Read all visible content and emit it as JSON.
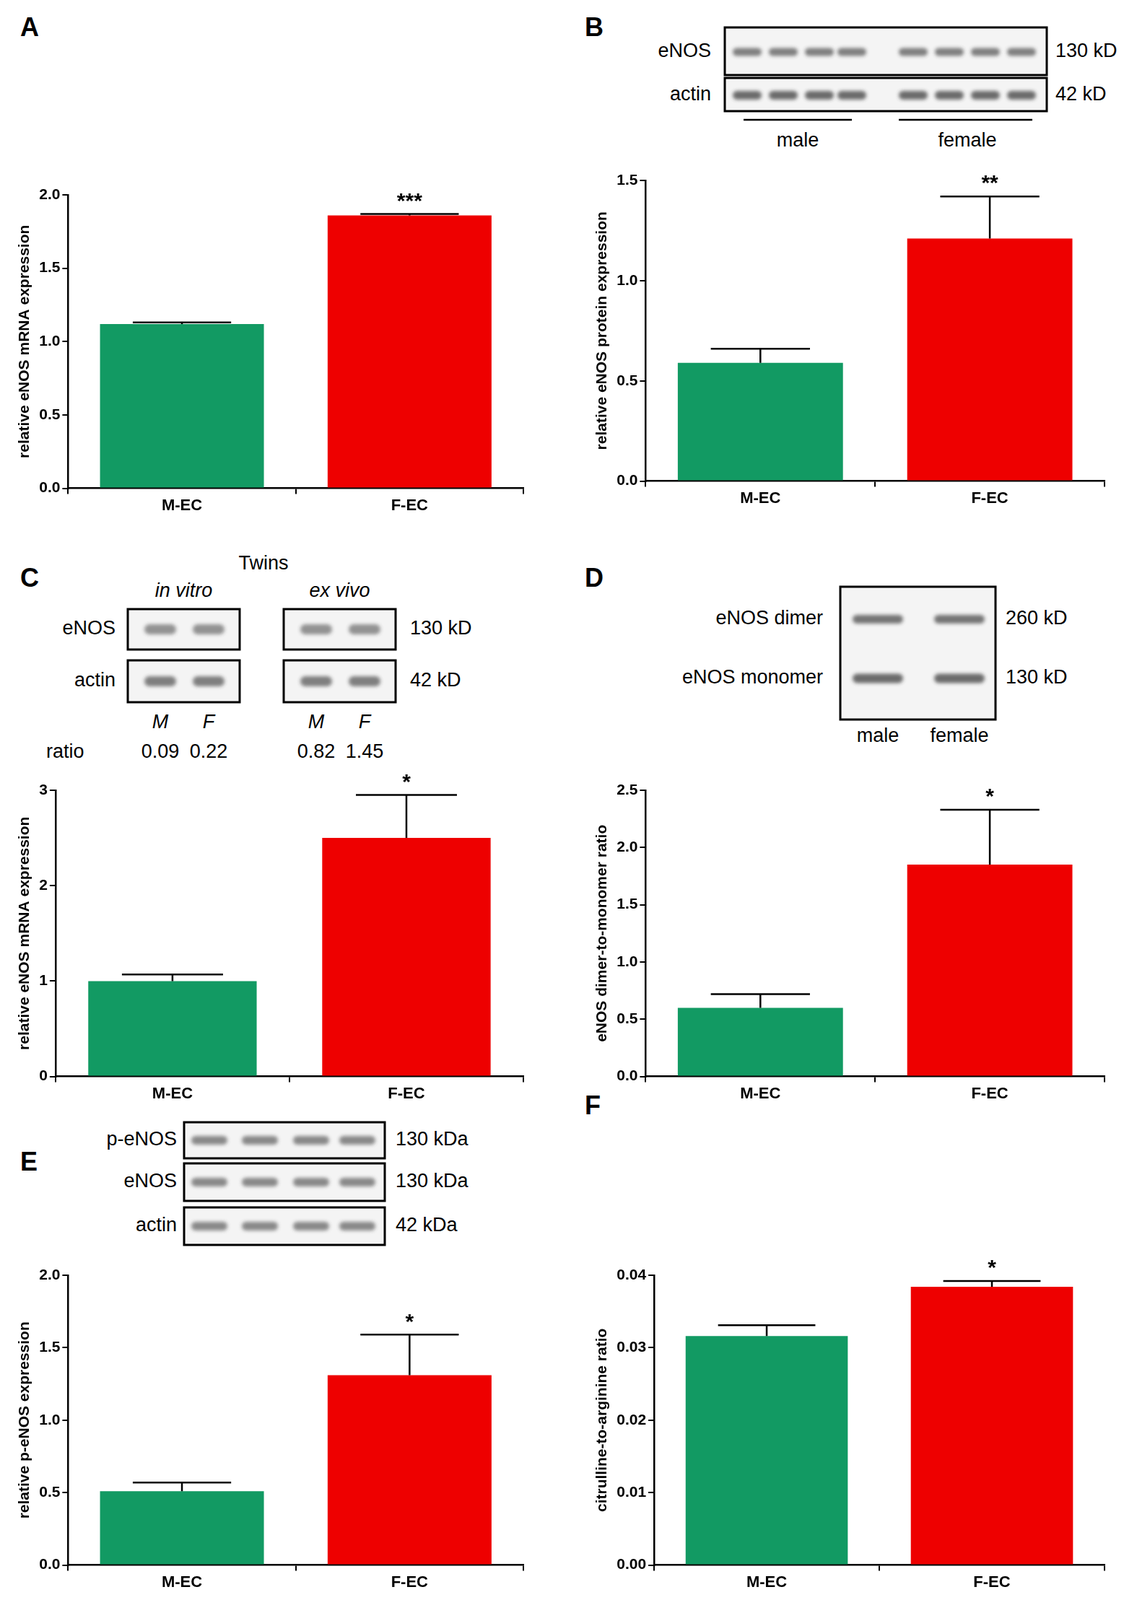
{
  "chart_data": [
    {
      "type": "bar",
      "ylabel": "relative eNOS mRNA expression",
      "categories": [
        "M-EC",
        "F-EC"
      ],
      "values": [
        1.12,
        1.86
      ],
      "error": [
        0.01,
        0.01
      ],
      "colors": [
        "#129a63",
        "#ee0000"
      ],
      "ylim": [
        0,
        2
      ],
      "yticks": [
        {
          "value": 0,
          "label": "0.0"
        },
        0.5,
        {
          "value": 1,
          "label": "1.0"
        },
        1.5,
        {
          "value": 2,
          "label": "2.0"
        }
      ],
      "grid": false,
      "annotations": [
        {
          "category": "F-EC",
          "text": "***"
        }
      ]
    },
    {
      "type": "bar",
      "ylabel": "relative eNOS protein expression",
      "categories": [
        "M-EC",
        "F-EC"
      ],
      "values": [
        0.59,
        1.21
      ],
      "error": [
        0.07,
        0.21
      ],
      "colors": [
        "#129a63",
        "#ee0000"
      ],
      "ylim": [
        0,
        1.5
      ],
      "yticks": [
        {
          "value": 0,
          "label": "0.0"
        },
        0.5,
        {
          "value": 1,
          "label": "1.0"
        },
        1.5
      ],
      "grid": false,
      "annotations": [
        {
          "category": "F-EC",
          "text": "**"
        }
      ]
    },
    {
      "type": "bar",
      "ylabel": "relative eNOS mRNA expression",
      "categories": [
        "M-EC",
        "F-EC"
      ],
      "values": [
        1.0,
        2.5
      ],
      "error": [
        0.07,
        0.45
      ],
      "colors": [
        "#129a63",
        "#ee0000"
      ],
      "ylim": [
        0,
        3
      ],
      "yticks": [
        0,
        1,
        2,
        3
      ],
      "grid": false,
      "annotations": [
        {
          "category": "F-EC",
          "text": "*"
        }
      ]
    },
    {
      "type": "bar",
      "ylabel": "eNOS dimer-to-monomer ratio",
      "categories": [
        "M-EC",
        "F-EC"
      ],
      "values": [
        0.6,
        1.85
      ],
      "error": [
        0.12,
        0.48
      ],
      "colors": [
        "#129a63",
        "#ee0000"
      ],
      "ylim": [
        0,
        2.5
      ],
      "yticks": [
        {
          "value": 0,
          "label": "0.0"
        },
        0.5,
        {
          "value": 1,
          "label": "1.0"
        },
        1.5,
        {
          "value": 2,
          "label": "2.0"
        },
        2.5
      ],
      "grid": false,
      "annotations": [
        {
          "category": "F-EC",
          "text": "*"
        }
      ]
    },
    {
      "type": "bar",
      "ylabel": "relative p-eNOS expression",
      "categories": [
        "M-EC",
        "F-EC"
      ],
      "values": [
        0.51,
        1.31
      ],
      "error": [
        0.06,
        0.28
      ],
      "colors": [
        "#129a63",
        "#ee0000"
      ],
      "ylim": [
        0,
        2
      ],
      "yticks": [
        {
          "value": 0,
          "label": "0.0"
        },
        0.5,
        {
          "value": 1,
          "label": "1.0"
        },
        1.5,
        {
          "value": 2,
          "label": "2.0"
        }
      ],
      "grid": false,
      "annotations": [
        {
          "category": "F-EC",
          "text": "*"
        }
      ]
    },
    {
      "type": "bar",
      "ylabel": "citrulline-to-arginine ratio",
      "categories": [
        "M-EC",
        "F-EC"
      ],
      "values": [
        0.0316,
        0.0384
      ],
      "error": [
        0.0015,
        0.0008
      ],
      "colors": [
        "#129a63",
        "#ee0000"
      ],
      "ylim": [
        0,
        0.04
      ],
      "yticks": [
        {
          "value": 0,
          "label": "0.00"
        },
        0.01,
        0.02,
        0.03,
        0.04
      ],
      "grid": false,
      "annotations": [
        {
          "category": "F-EC",
          "text": "*"
        }
      ]
    }
  ],
  "panels": [
    {
      "letter": "A"
    },
    {
      "letter": "B",
      "blot": {
        "rows": [
          {
            "label": "eNOS",
            "size": "130 kD"
          },
          {
            "label": "actin",
            "size": "42 kD"
          }
        ],
        "groups": [
          "male",
          "female"
        ]
      }
    },
    {
      "letter": "C",
      "blot": {
        "title": "Twins",
        "rows": [
          {
            "label": "eNOS",
            "size": "130 kD"
          },
          {
            "label": "actin",
            "size": "42 kD"
          }
        ],
        "boxes": [
          {
            "heading": "in vitro",
            "lanes": [
              "M",
              "F"
            ],
            "ratios": [
              0.09,
              0.22
            ]
          },
          {
            "heading": "ex vivo",
            "lanes": [
              "M",
              "F"
            ],
            "ratios": [
              0.82,
              1.45
            ]
          }
        ],
        "ratio_label": "ratio"
      }
    },
    {
      "letter": "D",
      "blot": {
        "rows": [
          {
            "label": "eNOS dimer",
            "size": "260 kD"
          },
          {
            "label": "eNOS monomer",
            "size": "130 kD"
          }
        ],
        "lanes": [
          "male",
          "female"
        ]
      }
    },
    {
      "letter": "E",
      "blot": {
        "rows": [
          {
            "label": "p-eNOS",
            "size": "130 kDa"
          },
          {
            "label": "eNOS",
            "size": "130 kDa"
          },
          {
            "label": "actin",
            "size": "42 kDa"
          }
        ]
      }
    },
    {
      "letter": "F"
    }
  ]
}
